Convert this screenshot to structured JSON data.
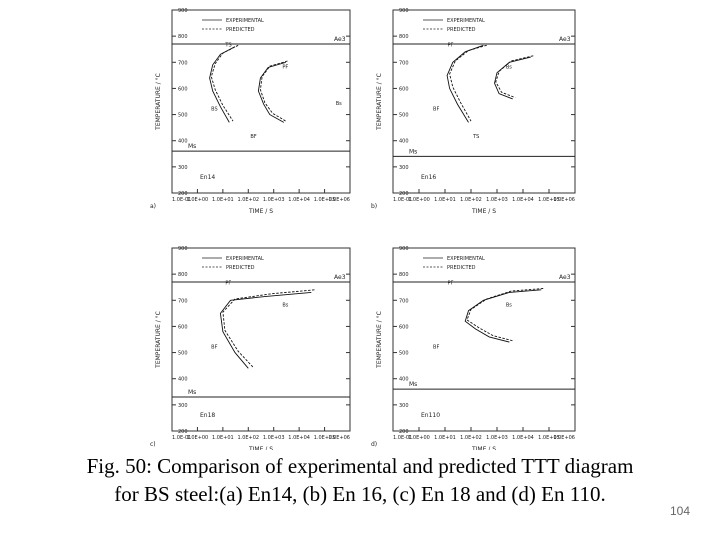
{
  "figure": {
    "caption_line1": "Fig. 50: Comparison of experimental and predicted  TTT diagram",
    "caption_line2": "for BS steel:(a) En14, (b) En 16, (c) En 18 and (d) En 110.",
    "page_number": "104"
  },
  "legend": {
    "experimental": "EXPERIMENTAL",
    "predicted": "PREDICTED"
  },
  "chart_data": [
    {
      "type": "line",
      "panel": "(a)",
      "steel": "En14",
      "xlabel": "TIME / S",
      "ylabel": "TEMPERATURE / °C",
      "x_scale": "log",
      "xlim": [
        0.1,
        1000000
      ],
      "ylim": [
        200,
        900
      ],
      "xticks": [
        "1.0E-01",
        "1.0E+00",
        "1.0E+01",
        "1.0E+02",
        "1.0E+03",
        "1.0E+04",
        "1.0E+05",
        "1.0E+06"
      ],
      "yticks": [
        "200",
        "300",
        "400",
        "500",
        "600",
        "700",
        "800",
        "900"
      ],
      "hlines": [
        {
          "label": "Ae3",
          "y": 770
        },
        {
          "label": "Ms",
          "y": 360
        }
      ],
      "annotations": [
        "Ae3",
        "Ms",
        "TS",
        "PF",
        "BS",
        "BF",
        "Bs"
      ],
      "series": [
        {
          "name": "EXPERIMENTAL",
          "style": "solid",
          "x": [
            30,
            8,
            4,
            3,
            4,
            8,
            18
          ],
          "y": [
            760,
            730,
            690,
            640,
            590,
            530,
            470
          ]
        },
        {
          "name": "PREDICTED",
          "style": "dashed",
          "x": [
            40,
            10,
            5,
            3.5,
            5,
            10,
            25
          ],
          "y": [
            765,
            735,
            695,
            645,
            595,
            535,
            475
          ]
        },
        {
          "name": "EXPERIMENTAL",
          "style": "solid",
          "x": [
            3000,
            600,
            300,
            250,
            400,
            700,
            2500
          ],
          "y": [
            700,
            680,
            640,
            590,
            540,
            500,
            470
          ]
        },
        {
          "name": "PREDICTED",
          "style": "dashed",
          "x": [
            3500,
            700,
            350,
            300,
            450,
            900,
            3000
          ],
          "y": [
            705,
            685,
            645,
            595,
            545,
            505,
            475
          ]
        }
      ]
    },
    {
      "type": "line",
      "panel": "(b)",
      "steel": "En16",
      "xlabel": "TIME / S",
      "ylabel": "TEMPERATURE / °C",
      "x_scale": "log",
      "xlim": [
        0.1,
        1000000
      ],
      "ylim": [
        200,
        900
      ],
      "xticks": [
        "1.0E-01",
        "1.0E+00",
        "1.0E+01",
        "1.0E+02",
        "1.0E+03",
        "1.0E+04",
        "1.0E+05",
        "1.0E+06"
      ],
      "yticks": [
        "200",
        "300",
        "400",
        "500",
        "600",
        "700",
        "800",
        "900"
      ],
      "hlines": [
        {
          "label": "Ae3",
          "y": 770
        },
        {
          "label": "Ms",
          "y": 340
        }
      ],
      "annotations": [
        "Ae3",
        "Ms",
        "PF",
        "Bs",
        "BF",
        "TS"
      ],
      "series": [
        {
          "name": "EXPERIMENTAL",
          "style": "solid",
          "x": [
            300,
            60,
            20,
            12,
            15,
            30,
            80
          ],
          "y": [
            765,
            740,
            700,
            650,
            600,
            540,
            470
          ]
        },
        {
          "name": "PREDICTED",
          "style": "dashed",
          "x": [
            400,
            80,
            25,
            15,
            20,
            40,
            100
          ],
          "y": [
            765,
            745,
            705,
            655,
            605,
            545,
            475
          ]
        },
        {
          "name": "EXPERIMENTAL",
          "style": "solid",
          "x": [
            20000,
            3000,
            1000,
            800,
            1200,
            4000
          ],
          "y": [
            720,
            700,
            660,
            620,
            580,
            560
          ]
        },
        {
          "name": "PREDICTED",
          "style": "dashed",
          "x": [
            25000,
            3500,
            1200,
            900,
            1500,
            5000
          ],
          "y": [
            725,
            705,
            665,
            625,
            585,
            565
          ]
        }
      ]
    },
    {
      "type": "line",
      "panel": "(c)",
      "steel": "En18",
      "xlabel": "TIME / S",
      "ylabel": "TEMPERATURE / °C",
      "x_scale": "log",
      "xlim": [
        0.1,
        1000000
      ],
      "ylim": [
        200,
        900
      ],
      "xticks": [
        "1.0E-01",
        "1.0E+00",
        "1.0E+01",
        "1.0E+02",
        "1.0E+03",
        "1.0E+04",
        "1.0E+05",
        "1.0E+06"
      ],
      "yticks": [
        "200",
        "300",
        "400",
        "500",
        "600",
        "700",
        "800",
        "900"
      ],
      "hlines": [
        {
          "label": "Ae3",
          "y": 770
        },
        {
          "label": "Ms",
          "y": 330
        }
      ],
      "annotations": [
        "Ae3",
        "Ms",
        "PF",
        "Bs",
        "BF"
      ],
      "series": [
        {
          "name": "EXPERIMENTAL",
          "style": "solid",
          "x": [
            30000,
            500,
            20,
            8,
            10,
            30,
            100
          ],
          "y": [
            730,
            715,
            700,
            650,
            580,
            500,
            440
          ]
        },
        {
          "name": "PREDICTED",
          "style": "dashed",
          "x": [
            40000,
            800,
            30,
            10,
            12,
            40,
            150
          ],
          "y": [
            740,
            725,
            705,
            655,
            585,
            505,
            445
          ]
        }
      ]
    },
    {
      "type": "line",
      "panel": "(d)",
      "steel": "En110",
      "xlabel": "TIME / S",
      "ylabel": "TEMPERATURE / °C",
      "x_scale": "log",
      "xlim": [
        0.1,
        1000000
      ],
      "ylim": [
        200,
        900
      ],
      "xticks": [
        "1.0E-01",
        "1.0E+00",
        "1.0E+01",
        "1.0E+02",
        "1.0E+03",
        "1.0E+04",
        "1.0E+05",
        "1.0E+06"
      ],
      "yticks": [
        "200",
        "300",
        "400",
        "500",
        "600",
        "700",
        "800",
        "900"
      ],
      "hlines": [
        {
          "label": "Ae3",
          "y": 770
        },
        {
          "label": "Ms",
          "y": 360
        }
      ],
      "annotations": [
        "Ae3",
        "Ms",
        "PF",
        "Bs",
        "BF"
      ],
      "series": [
        {
          "name": "EXPERIMENTAL",
          "style": "solid",
          "x": [
            50000,
            3000,
            300,
            80,
            60,
            150,
            500,
            3000
          ],
          "y": [
            740,
            730,
            700,
            660,
            620,
            590,
            560,
            540
          ]
        },
        {
          "name": "PREDICTED",
          "style": "dashed",
          "x": [
            60000,
            3500,
            400,
            100,
            70,
            200,
            700,
            4000
          ],
          "y": [
            745,
            735,
            705,
            665,
            625,
            595,
            565,
            545
          ]
        }
      ]
    }
  ]
}
